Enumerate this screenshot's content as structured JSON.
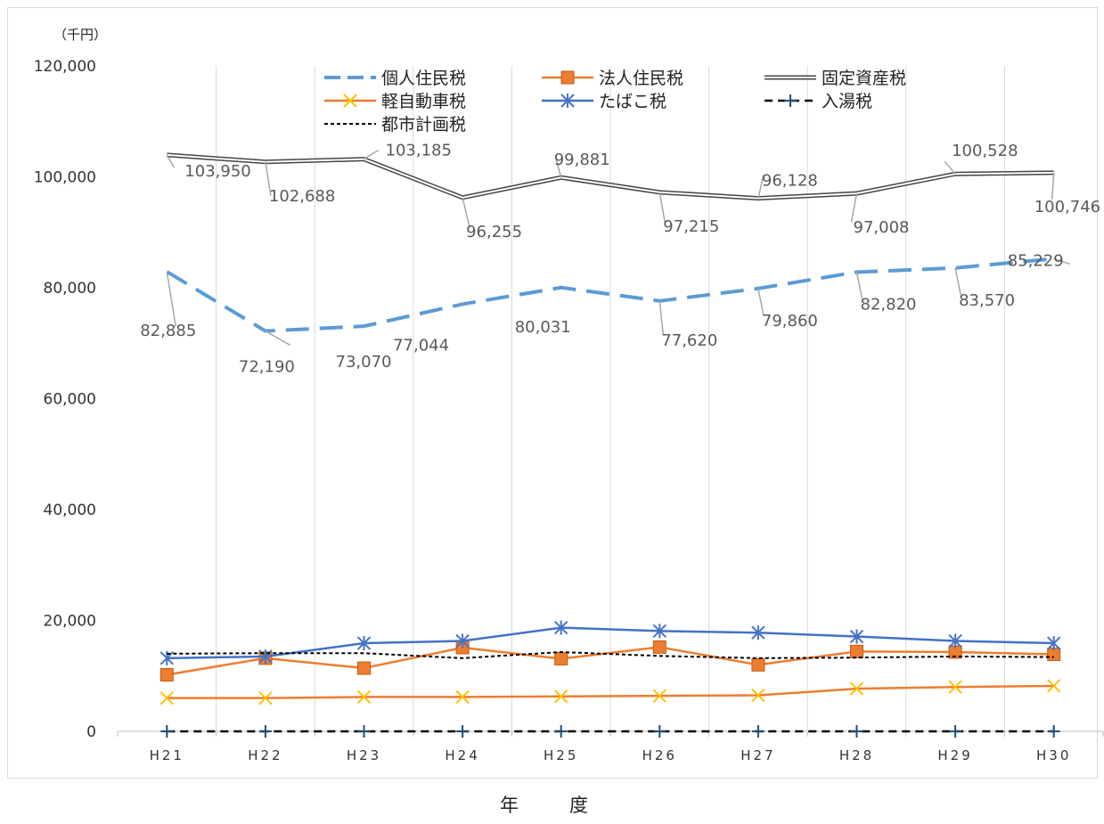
{
  "chart_data": {
    "type": "line",
    "unit_label": "（千円）",
    "xlabel": "年　度",
    "ylabel": "",
    "ylim": [
      0,
      120000
    ],
    "yticks": [
      "0",
      "20,000",
      "40,000",
      "60,000",
      "80,000",
      "100,000",
      "120,000"
    ],
    "ytick_values": [
      0,
      20000,
      40000,
      60000,
      80000,
      100000,
      120000
    ],
    "grid": "vertical",
    "legend_position": "top",
    "categories": [
      "H21",
      "H22",
      "H23",
      "H24",
      "H25",
      "H26",
      "H27",
      "H28",
      "H29",
      "H30"
    ],
    "series": [
      {
        "name": "個人住民税",
        "color": "#5b9bd5",
        "style": "dashed-thick",
        "values": [
          82885,
          72190,
          73070,
          77044,
          80031,
          77620,
          79860,
          82820,
          83570,
          85229
        ],
        "labels": [
          "82,885",
          "72,190",
          "73,070",
          "77,044",
          "80,031",
          "77,620",
          "79,860",
          "82,820",
          "83,570",
          "85,229"
        ]
      },
      {
        "name": "法人住民税",
        "color": "#ed7d31",
        "style": "square",
        "values": [
          10200,
          13200,
          11400,
          15100,
          13100,
          15200,
          12000,
          14400,
          14300,
          13900
        ]
      },
      {
        "name": "固定資産税",
        "color": "#444444",
        "style": "double",
        "values": [
          103950,
          102688,
          103185,
          96255,
          99881,
          97215,
          96128,
          97008,
          100528,
          100746
        ],
        "labels": [
          "103,950",
          "102,688",
          "103,185",
          "96,255",
          "99,881",
          "97,215",
          "96,128",
          "97,008",
          "100,528",
          "100,746"
        ]
      },
      {
        "name": "軽自動車税",
        "color": "#ffc000",
        "line_color": "#ed7d31",
        "style": "x",
        "values": [
          6000,
          6000,
          6200,
          6200,
          6300,
          6400,
          6500,
          7700,
          8000,
          8200
        ]
      },
      {
        "name": "たばこ税",
        "color": "#4472c4",
        "style": "star",
        "values": [
          13200,
          13500,
          15900,
          16300,
          18700,
          18100,
          17800,
          17100,
          16300,
          15900
        ]
      },
      {
        "name": "入湯税",
        "color": "#1f4e79",
        "line_color": "#000000",
        "style": "plus-dashed",
        "values": [
          0,
          0,
          0,
          0,
          0,
          0,
          0,
          0,
          0,
          0
        ]
      },
      {
        "name": "都市計画税",
        "color": "#000000",
        "style": "dotted",
        "values": [
          14000,
          14100,
          14100,
          13200,
          14300,
          13600,
          13200,
          13300,
          13500,
          13400
        ]
      }
    ]
  }
}
